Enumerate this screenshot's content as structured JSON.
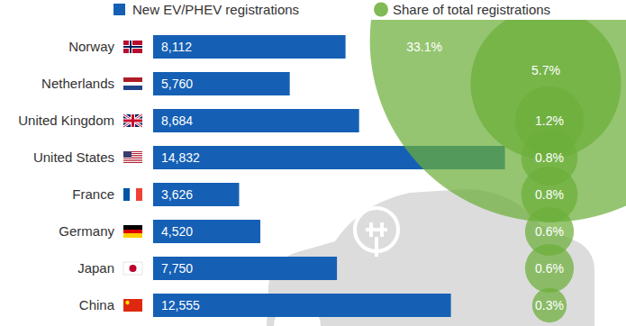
{
  "chart_data": {
    "type": "bar",
    "orientation": "horizontal",
    "categories": [
      "Norway",
      "Netherlands",
      "United Kingdom",
      "United States",
      "France",
      "Germany",
      "Japan",
      "China"
    ],
    "series": [
      {
        "name": "New EV/PHEV registrations",
        "type": "bar",
        "color": "#1560b5",
        "values": [
          8112,
          5760,
          8684,
          14832,
          3626,
          4520,
          7750,
          12555
        ],
        "value_labels": [
          "8,112",
          "5,760",
          "8,684",
          "14,832",
          "3,626",
          "4,520",
          "7,750",
          "12,555"
        ]
      },
      {
        "name": "Share of total registrations",
        "type": "bubble",
        "color": "#6cae3a",
        "values": [
          33.1,
          5.7,
          1.2,
          0.8,
          0.8,
          0.6,
          0.6,
          0.3
        ],
        "value_labels": [
          "33.1%",
          "5.7%",
          "1.2%",
          "0.8%",
          "0.8%",
          "0.6%",
          "0.6%",
          "0.3%"
        ]
      }
    ],
    "xlim": [
      0,
      15000
    ],
    "data_labels": true,
    "tick_labels": "y",
    "legend": "top"
  }
}
